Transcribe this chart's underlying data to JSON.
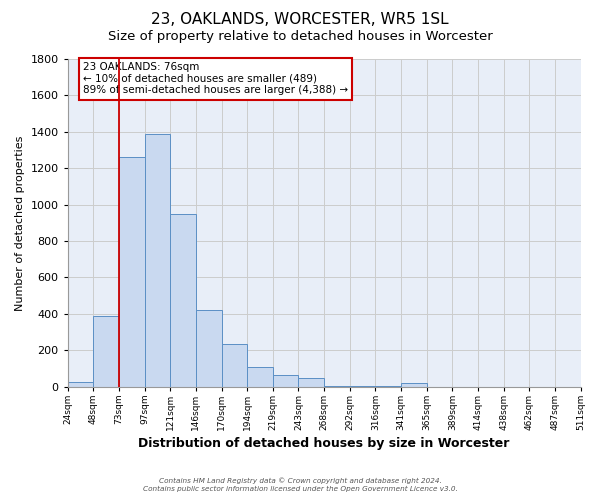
{
  "title": "23, OAKLANDS, WORCESTER, WR5 1SL",
  "subtitle": "Size of property relative to detached houses in Worcester",
  "xlabel": "Distribution of detached houses by size in Worcester",
  "ylabel": "Number of detached properties",
  "bar_values": [
    25,
    390,
    1260,
    1390,
    950,
    420,
    235,
    110,
    65,
    50,
    5,
    5,
    5,
    20,
    0,
    0,
    0,
    0,
    0,
    0
  ],
  "bin_labels": [
    "24sqm",
    "48sqm",
    "73sqm",
    "97sqm",
    "121sqm",
    "146sqm",
    "170sqm",
    "194sqm",
    "219sqm",
    "243sqm",
    "268sqm",
    "292sqm",
    "316sqm",
    "341sqm",
    "365sqm",
    "389sqm",
    "414sqm",
    "438sqm",
    "462sqm",
    "487sqm",
    "511sqm"
  ],
  "bar_color": "#c9d9f0",
  "bar_edge_color": "#5b8fc5",
  "vline_x_index": 2,
  "vline_color": "#cc0000",
  "annotation_line1": "23 OAKLANDS: 76sqm",
  "annotation_line2": "← 10% of detached houses are smaller (489)",
  "annotation_line3": "89% of semi-detached houses are larger (4,388) →",
  "annotation_box_color": "#ffffff",
  "annotation_box_edge": "#cc0000",
  "ylim": [
    0,
    1800
  ],
  "yticks": [
    0,
    200,
    400,
    600,
    800,
    1000,
    1200,
    1400,
    1600,
    1800
  ],
  "grid_color": "#cccccc",
  "bg_color": "#e8eef8",
  "footer_line1": "Contains HM Land Registry data © Crown copyright and database right 2024.",
  "footer_line2": "Contains public sector information licensed under the Open Government Licence v3.0.",
  "title_fontsize": 11,
  "subtitle_fontsize": 9.5,
  "xlabel_fontsize": 9,
  "ylabel_fontsize": 8
}
